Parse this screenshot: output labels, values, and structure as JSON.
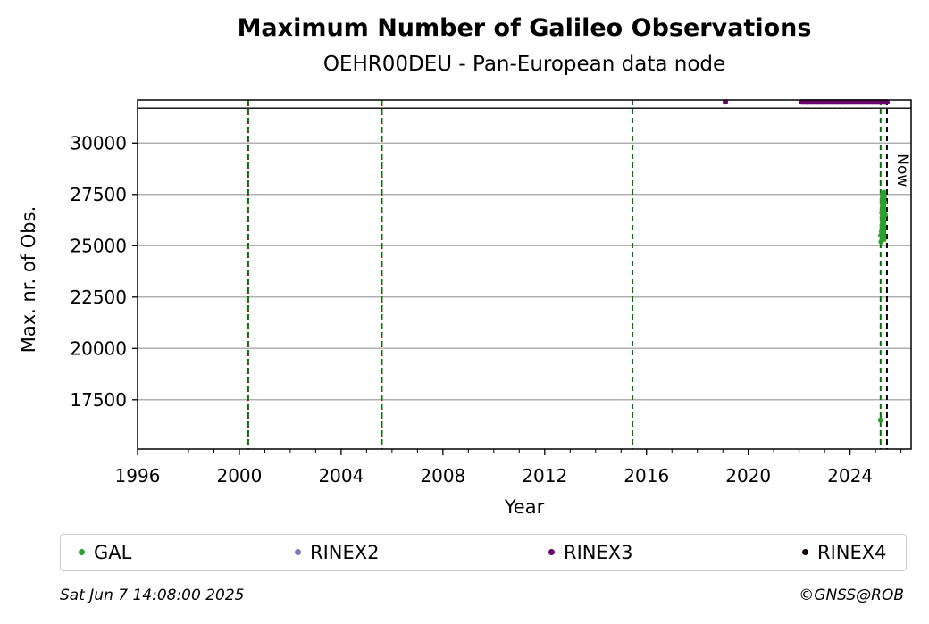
{
  "chart_data": {
    "type": "scatter",
    "title": "Maximum Number of Galileo Observations",
    "subtitle": "OEHR00DEU - Pan-European data node",
    "xlabel": "Year",
    "ylabel": "Max. nr. of Obs.",
    "xlim": [
      1996,
      2026.4
    ],
    "ylim": [
      15100,
      32100
    ],
    "xticks": [
      1996,
      2000,
      2004,
      2008,
      2012,
      2016,
      2020,
      2024
    ],
    "yticks": [
      17500,
      20000,
      22500,
      25000,
      27500,
      30000
    ],
    "grid": "horizontal",
    "reference_line_y": 31700,
    "vertical_lines": [
      {
        "x": 2000.35,
        "color": "#cc0000",
        "style": "dotted"
      },
      {
        "x": 2000.35,
        "color": "#007700",
        "style": "dashed"
      },
      {
        "x": 2005.6,
        "color": "#cc0000",
        "style": "dotted"
      },
      {
        "x": 2005.6,
        "color": "#007700",
        "style": "dashed"
      },
      {
        "x": 2015.45,
        "color": "#007700",
        "style": "dashed"
      },
      {
        "x": 2025.2,
        "color": "#007700",
        "style": "dashed"
      },
      {
        "x": 2025.45,
        "color": "#000000",
        "style": "dashed",
        "label": "Now"
      }
    ],
    "series": [
      {
        "name": "GAL",
        "color": "#2ca02c",
        "x": [
          2025.2,
          2025.22,
          2025.24,
          2025.26,
          2025.28,
          2025.3,
          2025.32,
          2025.34,
          2025.36,
          2025.38,
          2025.21,
          2025.27,
          2025.33,
          2025.25,
          2025.31
        ],
        "y": [
          16500,
          25200,
          25700,
          26000,
          26400,
          26800,
          27200,
          27400,
          27100,
          26500,
          25500,
          25900,
          27600,
          26600,
          27300
        ]
      },
      {
        "name": "RINEX2",
        "color": "#7b7bb8",
        "x": [],
        "y": []
      },
      {
        "name": "RINEX3",
        "color": "#6a006a",
        "x": [
          2019.1,
          2022.1,
          2022.3,
          2022.5,
          2022.7,
          2022.9,
          2023.1,
          2023.3,
          2023.5,
          2023.7,
          2023.9,
          2024.1,
          2024.3,
          2024.5,
          2024.7,
          2024.9,
          2025.1,
          2025.3,
          2025.45
        ],
        "y": [
          32000,
          32000,
          32000,
          32000,
          32000,
          32000,
          32000,
          32000,
          32000,
          32000,
          32000,
          32000,
          32000,
          32000,
          32000,
          32000,
          32000,
          32000,
          32000
        ]
      },
      {
        "name": "RINEX4",
        "color": "#1a0010",
        "x": [],
        "y": []
      }
    ]
  },
  "footer": {
    "timestamp": "Sat Jun  7 14:08:00 2025",
    "copyright": "©GNSS@ROB"
  }
}
